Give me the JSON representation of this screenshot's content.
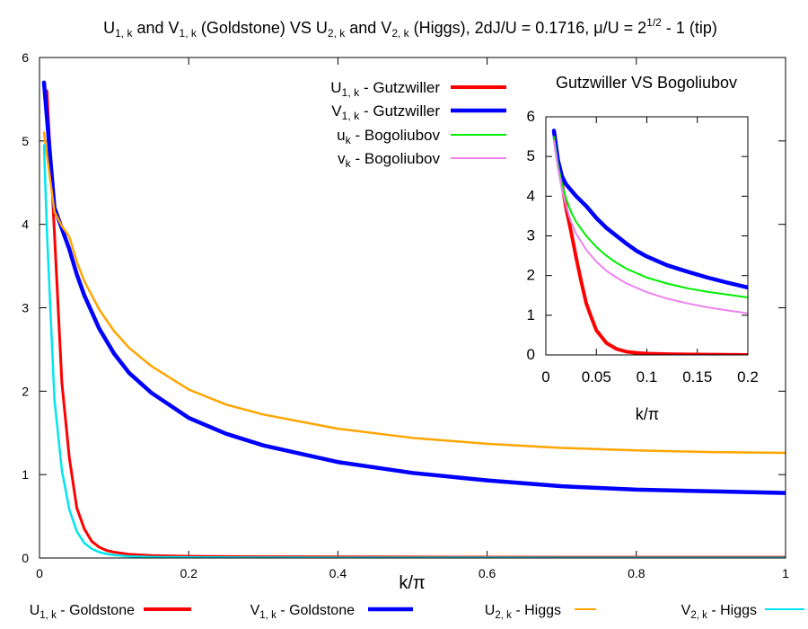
{
  "chart_data": [
    {
      "type": "line",
      "title": "U1,k and V1,k (Goldstone) VS U2,k and V2,k (Higgs), 2dJ/U = 0.1716, μ/U = 2^1/2 - 1 (tip)",
      "title_parts": {
        "u": "U",
        "u1sub": "1, k",
        "and1": " and V",
        "v1sub": "1, k",
        "mid": " (Goldstone) VS U",
        "u2sub": "2, k",
        "and2": " and V",
        "v2sub": "2, k",
        "params": " (Higgs), 2dJ/U = 0.1716, μ/U = 2",
        "sup": "1/2",
        "tail": " - 1 (tip)"
      },
      "xlabel": "k/π",
      "ylabel": "",
      "xlim": [
        0,
        1
      ],
      "ylim": [
        0,
        6
      ],
      "xticks": [
        "0",
        "0.2",
        "0.4",
        "0.6",
        "0.8",
        "1"
      ],
      "yticks": [
        "0",
        "1",
        "2",
        "3",
        "4",
        "5",
        "6"
      ],
      "legend_position": "bottom",
      "series": [
        {
          "name": "U1, k - Goldstone",
          "base": "U",
          "sub": "1, k",
          "suffix": " - Goldstone",
          "color": "#ff0000",
          "x": [
            0.01,
            0.02,
            0.03,
            0.04,
            0.05,
            0.06,
            0.07,
            0.08,
            0.09,
            0.1,
            0.12,
            0.15,
            0.2,
            0.3,
            0.5,
            0.7,
            1.0
          ],
          "y": [
            5.6,
            3.9,
            2.1,
            1.2,
            0.6,
            0.35,
            0.2,
            0.13,
            0.09,
            0.07,
            0.045,
            0.03,
            0.02,
            0.015,
            0.012,
            0.01,
            0.01
          ]
        },
        {
          "name": "V1, k - Goldstone",
          "base": "V",
          "sub": "1, k",
          "suffix": " - Goldstone",
          "color": "#0000ff",
          "x": [
            0.006,
            0.02,
            0.03,
            0.04,
            0.05,
            0.06,
            0.08,
            0.1,
            0.12,
            0.15,
            0.2,
            0.25,
            0.3,
            0.4,
            0.5,
            0.6,
            0.7,
            0.8,
            0.9,
            1.0
          ],
          "y": [
            5.7,
            4.2,
            3.95,
            3.7,
            3.4,
            3.15,
            2.75,
            2.45,
            2.22,
            1.98,
            1.68,
            1.49,
            1.35,
            1.15,
            1.02,
            0.93,
            0.86,
            0.82,
            0.8,
            0.78
          ]
        },
        {
          "name": "U2, k - Higgs",
          "base": "U",
          "sub": "2, k",
          "suffix": " - Higgs",
          "color": "#ffa500",
          "x": [
            0.006,
            0.02,
            0.03,
            0.04,
            0.05,
            0.06,
            0.08,
            0.1,
            0.12,
            0.15,
            0.2,
            0.25,
            0.3,
            0.4,
            0.5,
            0.6,
            0.7,
            0.8,
            0.9,
            1.0
          ],
          "y": [
            5.1,
            4.15,
            3.98,
            3.85,
            3.55,
            3.32,
            2.98,
            2.72,
            2.52,
            2.3,
            2.02,
            1.84,
            1.72,
            1.55,
            1.44,
            1.37,
            1.32,
            1.29,
            1.27,
            1.26
          ]
        },
        {
          "name": "V2, k - Higgs",
          "base": "V",
          "sub": "2, k",
          "suffix": " - Higgs",
          "color": "#00e5ee",
          "x": [
            0.006,
            0.01,
            0.02,
            0.03,
            0.04,
            0.05,
            0.06,
            0.07,
            0.08,
            0.09,
            0.1,
            0.12,
            0.15,
            0.2,
            0.3,
            0.5,
            0.7,
            1.0
          ],
          "y": [
            4.95,
            3.9,
            1.9,
            1.05,
            0.58,
            0.32,
            0.18,
            0.11,
            0.07,
            0.05,
            0.035,
            0.02,
            0.012,
            0.008,
            0.005,
            0.004,
            0.003,
            0.003
          ]
        }
      ]
    },
    {
      "type": "line",
      "title": "Gutzwiller VS Bogoliubov",
      "xlabel": "k/π",
      "xlim": [
        0,
        0.2
      ],
      "ylim": [
        0,
        6
      ],
      "xticks": [
        "0",
        "0.05",
        "0.1",
        "0.15",
        "0.2"
      ],
      "yticks": [
        "0",
        "1",
        "2",
        "3",
        "4",
        "5",
        "6"
      ],
      "legend_position": "top-left (outside inset)",
      "series": [
        {
          "name": "U1, k - Gutzwiller",
          "base": "U",
          "sub": "1, k",
          "suffix": " - Gutzwiller",
          "color": "#ff0000",
          "x": [
            0.008,
            0.012,
            0.016,
            0.02,
            0.025,
            0.03,
            0.035,
            0.04,
            0.045,
            0.05,
            0.06,
            0.07,
            0.08,
            0.09,
            0.1,
            0.12,
            0.15,
            0.2
          ],
          "y": [
            5.65,
            4.9,
            4.3,
            3.7,
            3.1,
            2.45,
            1.85,
            1.3,
            0.95,
            0.62,
            0.3,
            0.15,
            0.08,
            0.05,
            0.035,
            0.02,
            0.01,
            0.0
          ]
        },
        {
          "name": "V1, k - Gutzwiller",
          "base": "V",
          "sub": "1, k",
          "suffix": " - Gutzwiller",
          "color": "#0000ff",
          "x": [
            0.008,
            0.012,
            0.016,
            0.02,
            0.03,
            0.04,
            0.05,
            0.06,
            0.07,
            0.08,
            0.09,
            0.1,
            0.12,
            0.14,
            0.16,
            0.18,
            0.2
          ],
          "y": [
            5.65,
            4.9,
            4.5,
            4.3,
            4.0,
            3.75,
            3.45,
            3.2,
            3.0,
            2.8,
            2.62,
            2.48,
            2.26,
            2.1,
            1.95,
            1.82,
            1.7
          ]
        },
        {
          "name": "uk - Bogoliubov",
          "base": "u",
          "sub": "k",
          "suffix": " - Bogoliubov",
          "color": "#00ee00",
          "x": [
            0.008,
            0.012,
            0.016,
            0.02,
            0.025,
            0.03,
            0.04,
            0.05,
            0.06,
            0.07,
            0.08,
            0.1,
            0.12,
            0.14,
            0.16,
            0.18,
            0.2
          ],
          "y": [
            5.5,
            4.8,
            4.3,
            3.95,
            3.6,
            3.35,
            3.0,
            2.72,
            2.5,
            2.32,
            2.17,
            1.95,
            1.8,
            1.68,
            1.59,
            1.52,
            1.45
          ]
        },
        {
          "name": "vk - Bogoliubov",
          "base": "v",
          "sub": "k",
          "suffix": " - Bogoliubov",
          "color": "#ee82ee",
          "x": [
            0.008,
            0.012,
            0.016,
            0.02,
            0.025,
            0.03,
            0.04,
            0.05,
            0.06,
            0.07,
            0.08,
            0.1,
            0.12,
            0.14,
            0.16,
            0.18,
            0.2
          ],
          "y": [
            5.4,
            4.7,
            4.15,
            3.75,
            3.35,
            3.05,
            2.65,
            2.35,
            2.12,
            1.95,
            1.8,
            1.58,
            1.42,
            1.3,
            1.2,
            1.12,
            1.05
          ]
        }
      ]
    }
  ]
}
